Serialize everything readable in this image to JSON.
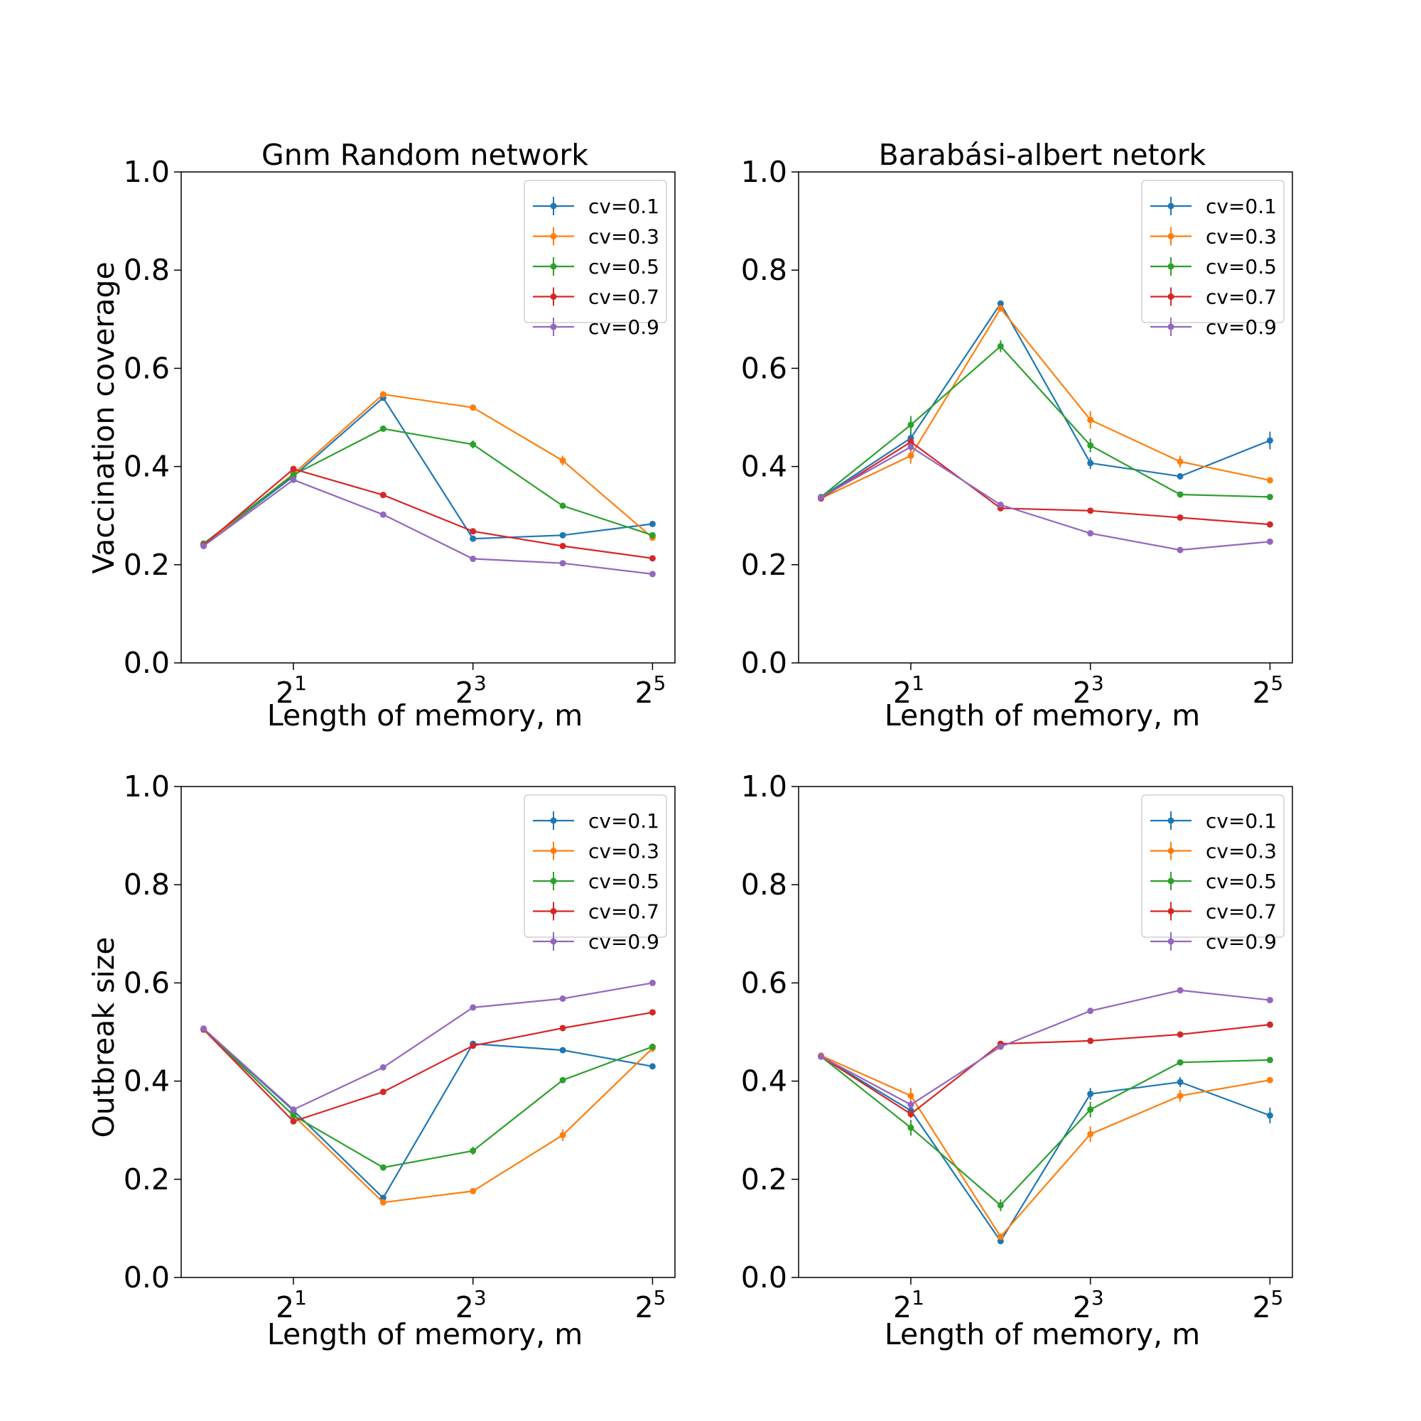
{
  "colors": {
    "series": [
      "#1f77b4",
      "#ff7f0e",
      "#2ca02c",
      "#d62728",
      "#9467bd"
    ]
  },
  "chart_data": [
    {
      "type": "line",
      "title": "Gnm Random network",
      "xlabel": "",
      "ylabel": "Vaccination coverage",
      "x": [
        1,
        2,
        4,
        8,
        16,
        32
      ],
      "xscale": "log2",
      "xticks": [
        2,
        8,
        32
      ],
      "xtick_labels": [
        {
          "base": "2",
          "exp": "1"
        },
        {
          "base": "2",
          "exp": "3"
        },
        {
          "base": "2",
          "exp": "5"
        }
      ],
      "ylim": [
        0.0,
        1.0
      ],
      "yticks": [
        "0.0",
        "0.2",
        "0.4",
        "0.6",
        "0.8",
        "1.0"
      ],
      "legend": "top-right",
      "grid": false,
      "series": [
        {
          "name": "cv=0.1",
          "values": [
            0.24,
            0.38,
            0.54,
            0.253,
            0.26,
            0.283
          ],
          "err": [
            0.004,
            0.004,
            0.004,
            0.004,
            0.004,
            0.004
          ]
        },
        {
          "name": "cv=0.3",
          "values": [
            0.24,
            0.385,
            0.547,
            0.52,
            0.412,
            0.255
          ],
          "err": [
            0.004,
            0.004,
            0.004,
            0.005,
            0.01,
            0.004
          ]
        },
        {
          "name": "cv=0.5",
          "values": [
            0.243,
            0.383,
            0.477,
            0.445,
            0.32,
            0.26
          ],
          "err": [
            0.004,
            0.004,
            0.004,
            0.008,
            0.004,
            0.004
          ]
        },
        {
          "name": "cv=0.7",
          "values": [
            0.24,
            0.395,
            0.342,
            0.268,
            0.238,
            0.213
          ],
          "err": [
            0.004,
            0.004,
            0.004,
            0.004,
            0.004,
            0.004
          ]
        },
        {
          "name": "cv=0.9",
          "values": [
            0.238,
            0.373,
            0.302,
            0.212,
            0.203,
            0.181
          ],
          "err": [
            0.004,
            0.004,
            0.004,
            0.004,
            0.004,
            0.004
          ]
        }
      ]
    },
    {
      "type": "line",
      "title": "Barabási-albert netork",
      "xlabel": "",
      "ylabel": "",
      "x": [
        1,
        2,
        4,
        8,
        16,
        32
      ],
      "xscale": "log2",
      "xticks": [
        2,
        8,
        32
      ],
      "xtick_labels": [
        {
          "base": "2",
          "exp": "1"
        },
        {
          "base": "2",
          "exp": "3"
        },
        {
          "base": "2",
          "exp": "5"
        }
      ],
      "ylim": [
        0.0,
        1.0
      ],
      "yticks": [
        "0.0",
        "0.2",
        "0.4",
        "0.6",
        "0.8",
        "1.0"
      ],
      "legend": "top-right",
      "grid": false,
      "series": [
        {
          "name": "cv=0.1",
          "values": [
            0.337,
            0.458,
            0.732,
            0.407,
            0.38,
            0.453
          ],
          "err": [
            0.004,
            0.012,
            0.006,
            0.012,
            0.006,
            0.018
          ]
        },
        {
          "name": "cv=0.3",
          "values": [
            0.335,
            0.422,
            0.722,
            0.495,
            0.41,
            0.372
          ],
          "err": [
            0.004,
            0.016,
            0.006,
            0.018,
            0.012,
            0.006
          ]
        },
        {
          "name": "cv=0.5",
          "values": [
            0.338,
            0.485,
            0.645,
            0.443,
            0.343,
            0.338
          ],
          "err": [
            0.004,
            0.018,
            0.012,
            0.014,
            0.004,
            0.004
          ]
        },
        {
          "name": "cv=0.7",
          "values": [
            0.335,
            0.45,
            0.315,
            0.31,
            0.296,
            0.282
          ],
          "err": [
            0.004,
            0.008,
            0.004,
            0.004,
            0.004,
            0.004
          ]
        },
        {
          "name": "cv=0.9",
          "values": [
            0.337,
            0.44,
            0.322,
            0.264,
            0.23,
            0.247
          ],
          "err": [
            0.004,
            0.008,
            0.004,
            0.004,
            0.004,
            0.004
          ]
        }
      ]
    },
    {
      "type": "line",
      "title": "",
      "xlabel": "",
      "ylabel": "Outbreak size",
      "x": [
        1,
        2,
        4,
        8,
        16,
        32
      ],
      "xscale": "log2",
      "xticks": [
        2,
        8,
        32
      ],
      "xtick_labels": [
        {
          "base": "2",
          "exp": "1"
        },
        {
          "base": "2",
          "exp": "3"
        },
        {
          "base": "2",
          "exp": "5"
        }
      ],
      "ylim": [
        0.0,
        1.0
      ],
      "yticks": [
        "0.0",
        "0.2",
        "0.4",
        "0.6",
        "0.8",
        "1.0"
      ],
      "legend": "top-right",
      "grid": false,
      "series": [
        {
          "name": "cv=0.1",
          "values": [
            0.505,
            0.34,
            0.162,
            0.476,
            0.463,
            0.43
          ],
          "err": [
            0.004,
            0.004,
            0.004,
            0.004,
            0.004,
            0.004
          ]
        },
        {
          "name": "cv=0.3",
          "values": [
            0.505,
            0.33,
            0.153,
            0.176,
            0.29,
            0.467
          ],
          "err": [
            0.004,
            0.004,
            0.004,
            0.004,
            0.012,
            0.008
          ]
        },
        {
          "name": "cv=0.5",
          "values": [
            0.505,
            0.33,
            0.224,
            0.258,
            0.402,
            0.47
          ],
          "err": [
            0.004,
            0.004,
            0.004,
            0.008,
            0.004,
            0.004
          ]
        },
        {
          "name": "cv=0.7",
          "values": [
            0.505,
            0.318,
            0.378,
            0.472,
            0.508,
            0.54
          ],
          "err": [
            0.004,
            0.004,
            0.004,
            0.004,
            0.004,
            0.004
          ]
        },
        {
          "name": "cv=0.9",
          "values": [
            0.507,
            0.342,
            0.428,
            0.55,
            0.568,
            0.6
          ],
          "err": [
            0.004,
            0.004,
            0.004,
            0.004,
            0.004,
            0.004
          ]
        }
      ]
    },
    {
      "type": "line",
      "title": "",
      "xlabel": "",
      "ylabel": "",
      "x": [
        1,
        2,
        4,
        8,
        16,
        32
      ],
      "xscale": "log2",
      "xticks": [
        2,
        8,
        32
      ],
      "xtick_labels": [
        {
          "base": "2",
          "exp": "1"
        },
        {
          "base": "2",
          "exp": "3"
        },
        {
          "base": "2",
          "exp": "5"
        }
      ],
      "ylim": [
        0.0,
        1.0
      ],
      "yticks": [
        "0.0",
        "0.2",
        "0.4",
        "0.6",
        "0.8",
        "1.0"
      ],
      "legend": "top-right",
      "grid": false,
      "series": [
        {
          "name": "cv=0.1",
          "values": [
            0.45,
            0.34,
            0.074,
            0.374,
            0.398,
            0.33
          ],
          "err": [
            0.004,
            0.01,
            0.004,
            0.012,
            0.01,
            0.016
          ]
        },
        {
          "name": "cv=0.3",
          "values": [
            0.452,
            0.37,
            0.083,
            0.292,
            0.37,
            0.402
          ],
          "err": [
            0.004,
            0.016,
            0.004,
            0.016,
            0.012,
            0.006
          ]
        },
        {
          "name": "cv=0.5",
          "values": [
            0.45,
            0.305,
            0.147,
            0.342,
            0.438,
            0.443
          ],
          "err": [
            0.004,
            0.016,
            0.012,
            0.016,
            0.004,
            0.004
          ]
        },
        {
          "name": "cv=0.7",
          "values": [
            0.45,
            0.333,
            0.476,
            0.482,
            0.495,
            0.515
          ],
          "err": [
            0.004,
            0.008,
            0.004,
            0.004,
            0.004,
            0.004
          ]
        },
        {
          "name": "cv=0.9",
          "values": [
            0.45,
            0.352,
            0.47,
            0.543,
            0.585,
            0.565
          ],
          "err": [
            0.004,
            0.008,
            0.004,
            0.004,
            0.004,
            0.004
          ]
        }
      ]
    }
  ],
  "shared_xlabel": "Length of memory, m"
}
